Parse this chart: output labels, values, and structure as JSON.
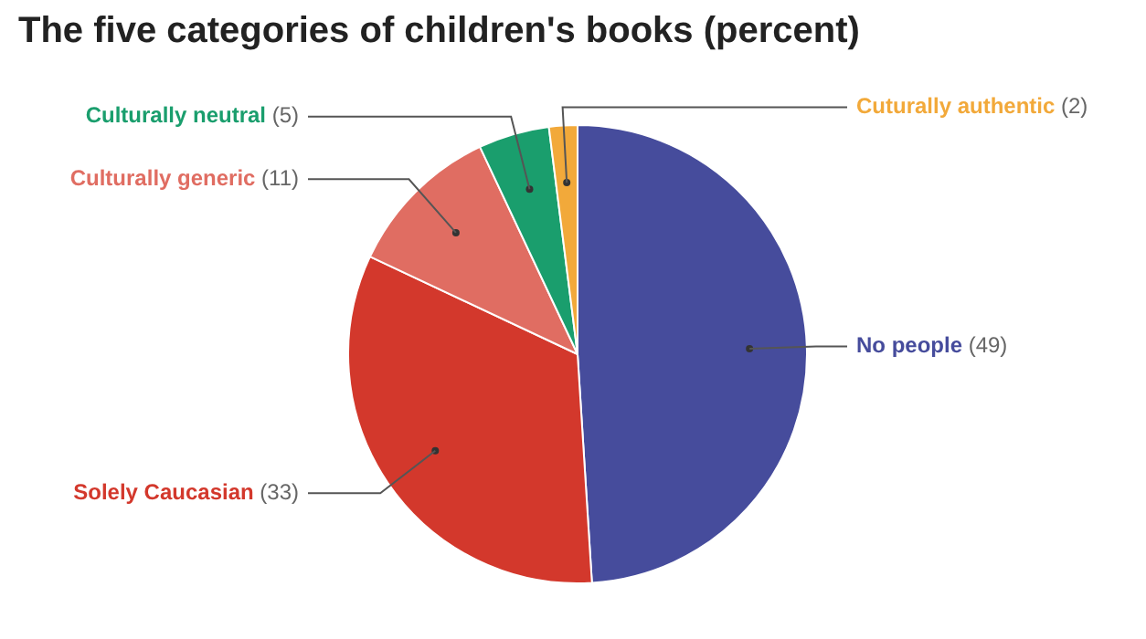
{
  "chart_data": {
    "type": "pie",
    "title": "The five categories of children's books (percent)",
    "categories": [
      "No people",
      "Solely Caucasian",
      "Culturally generic",
      "Culturally neutral",
      "Cuturally authentic"
    ],
    "values": [
      49,
      33,
      11,
      5,
      2
    ],
    "colors": [
      "#464c9c",
      "#d3382c",
      "#e06d62",
      "#1a9e6d",
      "#f2a93a"
    ],
    "value_labels": [
      "(49)",
      "(33)",
      "(11)",
      "(5)",
      "(2)"
    ],
    "legend": false
  }
}
